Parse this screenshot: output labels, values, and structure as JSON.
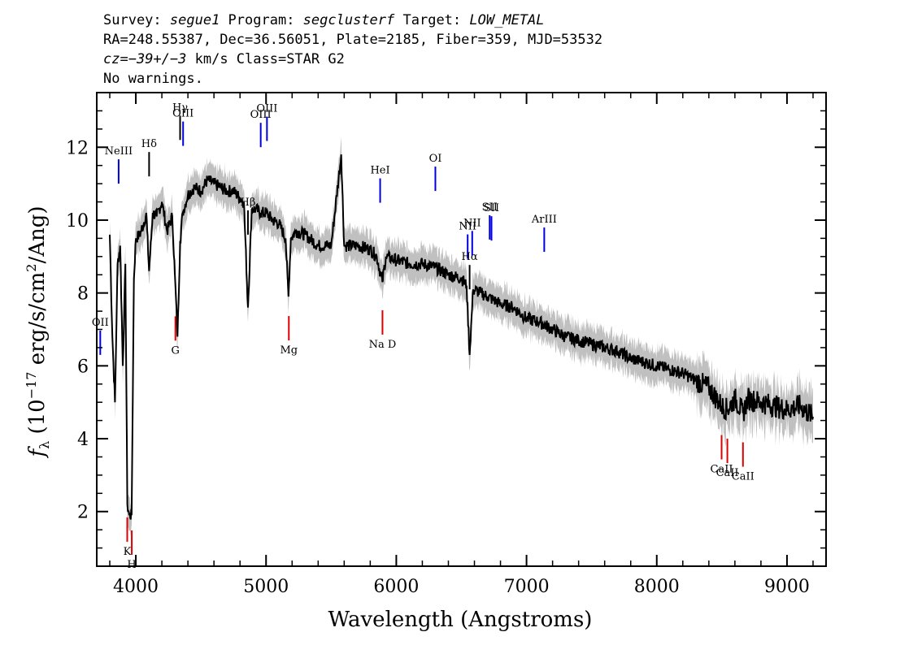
{
  "header": {
    "line1": {
      "survey_label": "Survey: ",
      "survey": "segue1",
      "program_label": " Program: ",
      "program": "segclusterf",
      "target_label": " Target: ",
      "target": "LOW_METAL"
    },
    "line2": "RA=248.55387, Dec=36.56051, Plate=2185, Fiber=359, MJD=53532",
    "line3": {
      "cz": "cz=",
      "velocity": "−39+/−3",
      "rest": " km/s Class=STAR G2"
    },
    "line4": "No warnings."
  },
  "chart_data": {
    "type": "line",
    "xlabel": "Wavelength (Angstroms)",
    "ylabel": "f_λ (10^-17 erg/s/cm^2/Ang)",
    "xlim": [
      3700,
      9300
    ],
    "ylim": [
      0.5,
      13.5
    ],
    "xticks": [
      4000,
      5000,
      6000,
      7000,
      8000,
      9000
    ],
    "yticks": [
      2,
      4,
      6,
      8,
      10,
      12
    ],
    "grid": false,
    "colors": {
      "flux": "#000000",
      "error_band": "#c0c0c0",
      "emission_lines": "#0000dd",
      "absorption_lines": "#dd0000"
    },
    "series": [
      {
        "role": "flux",
        "x": [
          3800,
          3820,
          3840,
          3860,
          3880,
          3900,
          3920,
          3935,
          3950,
          3968,
          3985,
          4000,
          4030,
          4060,
          4080,
          4102,
          4130,
          4160,
          4200,
          4240,
          4280,
          4300,
          4320,
          4340,
          4360,
          4400,
          4450,
          4500,
          4550,
          4600,
          4650,
          4700,
          4750,
          4800,
          4830,
          4861,
          4890,
          4920,
          4960,
          5000,
          5050,
          5100,
          5150,
          5172,
          5190,
          5230,
          5300,
          5400,
          5500,
          5577,
          5600,
          5700,
          5800,
          5850,
          5893,
          5920,
          6000,
          6100,
          6200,
          6300,
          6400,
          6500,
          6540,
          6563,
          6590,
          6650,
          6700,
          6800,
          6900,
          7000,
          7100,
          7200,
          7300,
          7400,
          7500,
          7600,
          7700,
          7800,
          7900,
          8000,
          8100,
          8200,
          8300,
          8400,
          8498,
          8542,
          8600,
          8662,
          8700,
          8800,
          8900,
          9000,
          9100,
          9200
        ],
        "y": [
          9.6,
          6.8,
          5.0,
          8.8,
          9.3,
          6.0,
          8.8,
          2.2,
          1.9,
          1.9,
          8.4,
          9.5,
          9.6,
          9.9,
          10.2,
          8.6,
          10.2,
          10.1,
          10.5,
          9.7,
          10.1,
          8.5,
          6.8,
          9.4,
          10.2,
          10.7,
          10.9,
          10.8,
          11.1,
          11.0,
          10.9,
          10.8,
          10.8,
          10.6,
          10.5,
          7.6,
          10.3,
          10.3,
          10.2,
          10.2,
          10.0,
          9.9,
          9.5,
          7.9,
          9.5,
          9.7,
          9.6,
          9.3,
          9.3,
          11.8,
          9.3,
          9.3,
          9.2,
          9.0,
          8.3,
          9.0,
          8.9,
          8.8,
          8.8,
          8.7,
          8.5,
          8.4,
          8.2,
          6.3,
          8.1,
          8.0,
          7.9,
          7.7,
          7.6,
          7.3,
          7.2,
          7.0,
          6.8,
          6.7,
          6.6,
          6.5,
          6.4,
          6.2,
          6.1,
          6.0,
          5.9,
          5.8,
          5.6,
          5.4,
          4.9,
          4.8,
          5.1,
          4.7,
          5.1,
          5.0,
          4.9,
          4.8,
          4.9,
          4.6
        ]
      }
    ],
    "emission_lines": [
      {
        "label": "OII",
        "wavelength": 3727
      },
      {
        "label": "NeIII",
        "wavelength": 3868
      },
      {
        "label": "Hδ",
        "wavelength": 4102
      },
      {
        "label": "Hγ",
        "wavelength": 4340
      },
      {
        "label": "OIII",
        "wavelength": 4363
      },
      {
        "label": "Hβ",
        "wavelength": 4861
      },
      {
        "label": "OIII",
        "wavelength": 4959
      },
      {
        "label": "OIII",
        "wavelength": 5007
      },
      {
        "label": "HeI",
        "wavelength": 5876
      },
      {
        "label": "OI",
        "wavelength": 6300
      },
      {
        "label": "NII",
        "wavelength": 6548
      },
      {
        "label": "Hα",
        "wavelength": 6563
      },
      {
        "label": "NII",
        "wavelength": 6583
      },
      {
        "label": "SII",
        "wavelength": 6717
      },
      {
        "label": "SII",
        "wavelength": 6731
      },
      {
        "label": "ArIII",
        "wavelength": 7136
      }
    ],
    "absorption_lines": [
      {
        "label": "K",
        "wavelength": 3934
      },
      {
        "label": "H",
        "wavelength": 3969
      },
      {
        "label": "G",
        "wavelength": 4304
      },
      {
        "label": "Mg",
        "wavelength": 5175
      },
      {
        "label": "Na D",
        "wavelength": 5894
      },
      {
        "label": "CaII",
        "wavelength": 8498
      },
      {
        "label": "CaII",
        "wavelength": 8542
      },
      {
        "label": "CaII",
        "wavelength": 8662
      }
    ]
  }
}
